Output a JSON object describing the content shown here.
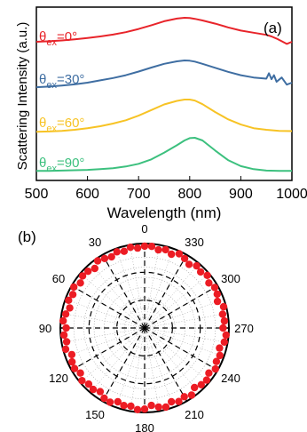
{
  "colors": {
    "red": "#e8242a",
    "blue": "#3f6ea2",
    "yellow": "#f7c325",
    "green": "#3cc07e",
    "axis": "#000000",
    "dot": "#ec1c24",
    "grid": "#9a9a9a"
  },
  "chart_data": [
    {
      "type": "line",
      "panel_label": "(a)",
      "xlabel": "Wavelength (nm)",
      "ylabel": "Scattering Intensity (a.u.)",
      "xlim": [
        500,
        1000
      ],
      "x_ticks": [
        500,
        600,
        700,
        800,
        900,
        1000
      ],
      "yscale": "arbitrary, curves vertically offset",
      "series": [
        {
          "name_parts": {
            "symbol": "θ",
            "sub": "ex",
            "rest": "=0°"
          },
          "color": "red",
          "offset": 3,
          "x": [
            500,
            525,
            550,
            575,
            600,
            625,
            650,
            675,
            700,
            725,
            750,
            775,
            790,
            800,
            810,
            825,
            850,
            875,
            900,
            925,
            950,
            960,
            970,
            980,
            990,
            1000
          ],
          "y": [
            0.1,
            0.12,
            0.15,
            0.19,
            0.24,
            0.3,
            0.37,
            0.46,
            0.58,
            0.72,
            0.87,
            0.97,
            1.0,
            0.99,
            0.96,
            0.9,
            0.78,
            0.64,
            0.52,
            0.44,
            0.36,
            0.3,
            0.22,
            0.12,
            0.02,
            0.1
          ]
        },
        {
          "name_parts": {
            "symbol": "θ",
            "sub": "ex",
            "rest": "=30°"
          },
          "color": "blue",
          "offset": 2,
          "x": [
            500,
            525,
            550,
            575,
            600,
            625,
            650,
            675,
            700,
            725,
            750,
            775,
            790,
            800,
            810,
            825,
            850,
            875,
            900,
            925,
            950,
            955,
            960,
            965,
            970,
            980,
            990,
            1000
          ],
          "y": [
            0.06,
            0.08,
            0.12,
            0.16,
            0.22,
            0.3,
            0.38,
            0.48,
            0.61,
            0.75,
            0.88,
            0.97,
            1.0,
            0.99,
            0.96,
            0.88,
            0.74,
            0.6,
            0.48,
            0.4,
            0.36,
            0.55,
            0.34,
            0.48,
            0.25,
            0.4,
            0.15,
            0.22
          ]
        },
        {
          "name_parts": {
            "symbol": "θ",
            "sub": "ex",
            "rest": "=60°"
          },
          "color": "yellow",
          "offset": 1,
          "x": [
            500,
            525,
            550,
            575,
            600,
            625,
            650,
            675,
            700,
            725,
            750,
            775,
            790,
            800,
            810,
            825,
            850,
            875,
            900,
            925,
            950,
            975,
            1000
          ],
          "y": [
            0.02,
            0.03,
            0.05,
            0.08,
            0.13,
            0.19,
            0.27,
            0.37,
            0.51,
            0.68,
            0.85,
            0.96,
            1.0,
            1.0,
            0.97,
            0.86,
            0.62,
            0.4,
            0.24,
            0.13,
            0.08,
            0.05,
            0.04
          ]
        },
        {
          "name_parts": {
            "symbol": "θ",
            "sub": "ex",
            "rest": "=90°"
          },
          "color": "green",
          "offset": 0,
          "x": [
            500,
            525,
            550,
            575,
            600,
            625,
            650,
            675,
            700,
            725,
            750,
            775,
            790,
            800,
            810,
            825,
            850,
            875,
            900,
            925,
            950,
            975,
            1000
          ],
          "y": [
            0.02,
            0.02,
            0.03,
            0.04,
            0.05,
            0.07,
            0.1,
            0.15,
            0.23,
            0.36,
            0.56,
            0.78,
            0.92,
            0.99,
            1.0,
            0.92,
            0.62,
            0.34,
            0.16,
            0.07,
            0.03,
            0.02,
            0.02
          ]
        }
      ]
    },
    {
      "type": "scatter",
      "subtype": "polar",
      "panel_label": "(b)",
      "angle_ticks": [
        "0",
        "30",
        "60",
        "90",
        "120",
        "150",
        "180",
        "210",
        "240",
        "270",
        "300",
        "330"
      ],
      "angle_tick_values_deg": [
        0,
        30,
        60,
        90,
        120,
        150,
        180,
        210,
        240,
        270,
        300,
        330
      ],
      "angle_direction": "counterclockwise from top",
      "rlim": [
        0,
        1
      ],
      "grid": true,
      "points_angle_deg": [
        0,
        5,
        10,
        15,
        20,
        25,
        30,
        35,
        40,
        45,
        50,
        55,
        60,
        65,
        70,
        75,
        80,
        85,
        90,
        95,
        100,
        105,
        110,
        115,
        120,
        125,
        130,
        135,
        140,
        145,
        150,
        155,
        160,
        165,
        170,
        175,
        180,
        185,
        190,
        195,
        200,
        205,
        210,
        215,
        220,
        225,
        230,
        235,
        240,
        245,
        250,
        255,
        260,
        265,
        270,
        275,
        280,
        285,
        290,
        295,
        300,
        305,
        310,
        315,
        320,
        325,
        330,
        335,
        340,
        345,
        350,
        355
      ],
      "points_r": [
        0.97,
        0.95,
        0.97,
        0.94,
        0.96,
        0.93,
        0.95,
        0.97,
        0.92,
        0.95,
        0.96,
        0.93,
        0.97,
        0.94,
        0.96,
        0.92,
        0.95,
        0.97,
        0.93,
        0.96,
        0.94,
        0.97,
        0.92,
        0.95,
        0.96,
        0.93,
        0.97,
        0.94,
        0.95,
        0.92,
        0.96,
        0.97,
        0.93,
        0.95,
        0.94,
        0.97,
        0.96,
        0.92,
        0.95,
        0.97,
        0.93,
        0.96,
        0.94,
        0.97,
        0.92,
        0.95,
        0.96,
        0.93,
        0.97,
        0.94,
        0.95,
        0.92,
        0.96,
        0.97,
        0.93,
        0.95,
        0.94,
        0.97,
        0.92,
        0.95,
        0.96,
        0.93,
        0.97,
        0.94,
        0.96,
        0.92,
        0.95,
        0.97,
        0.93,
        0.96,
        0.94,
        0.97
      ]
    }
  ]
}
